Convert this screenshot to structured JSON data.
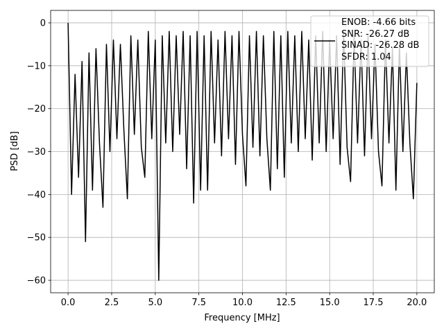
{
  "chart_data": {
    "type": "line",
    "xlabel": "Frequency [MHz]",
    "ylabel": "PSD [dB]",
    "x": [
      0,
      0.2,
      0.4,
      0.6,
      0.8,
      1.0,
      1.2,
      1.4,
      1.6,
      1.8,
      2.0,
      2.2,
      2.4,
      2.6,
      2.8,
      3.0,
      3.2,
      3.4,
      3.6,
      3.8,
      4.0,
      4.2,
      4.4,
      4.6,
      4.8,
      5.0,
      5.2,
      5.4,
      5.6,
      5.8,
      6.0,
      6.2,
      6.4,
      6.6,
      6.8,
      7.0,
      7.2,
      7.4,
      7.6,
      7.8,
      8.0,
      8.2,
      8.4,
      8.6,
      8.8,
      9.0,
      9.2,
      9.4,
      9.6,
      9.8,
      10.0,
      10.2,
      10.4,
      10.6,
      10.8,
      11.0,
      11.2,
      11.4,
      11.6,
      11.8,
      12.0,
      12.2,
      12.4,
      12.6,
      12.8,
      13.0,
      13.2,
      13.4,
      13.6,
      13.8,
      14.0,
      14.2,
      14.4,
      14.6,
      14.8,
      15.0,
      15.2,
      15.4,
      15.6,
      15.8,
      16.0,
      16.2,
      16.4,
      16.6,
      16.8,
      17.0,
      17.2,
      17.4,
      17.6,
      17.8,
      18.0,
      18.2,
      18.4,
      18.6,
      18.8,
      19.0,
      19.2,
      19.4,
      19.6,
      19.8,
      20.0
    ],
    "series": [
      {
        "name": "ENOB: -4.66 bits\nSNR: -26.27 dB\nSINAD: -26.28 dB\nSFDR: 1.04",
        "color": "#000000",
        "values": [
          0,
          -40,
          -12,
          -36,
          -9,
          -51,
          -7,
          -39,
          -6,
          -28,
          -43,
          -5,
          -30,
          -4,
          -27,
          -5,
          -25,
          -41,
          -3,
          -26,
          -4,
          -29,
          -36,
          -2,
          -27,
          -4,
          -60,
          -3,
          -28,
          -2,
          -30,
          -3,
          -26,
          -2,
          -34,
          -3,
          -42,
          -2,
          -39,
          -3,
          -39,
          -2,
          -28,
          -4,
          -31,
          -2,
          -27,
          -3,
          -33,
          -2,
          -26,
          -38,
          -3,
          -29,
          -2,
          -31,
          -3,
          -27,
          -39,
          -2,
          -34,
          -3,
          -36,
          -2,
          -28,
          -3,
          -30,
          -2,
          -27,
          -4,
          -32,
          -3,
          -28,
          -2,
          -30,
          -4,
          -27,
          -3,
          -33,
          -2,
          -29,
          -37,
          -3,
          -28,
          -4,
          -31,
          -3,
          -27,
          -5,
          -30,
          -38,
          -4,
          -28,
          -6,
          -39,
          -5,
          -30,
          -7,
          -28,
          -41,
          -14
        ]
      }
    ],
    "xlim": [
      -1,
      21
    ],
    "ylim": [
      -62.9,
      2.9
    ],
    "xticks": [
      {
        "value": 0,
        "label": "0.0"
      },
      2.5,
      {
        "value": 5,
        "label": "5.0"
      },
      7.5,
      {
        "value": 10,
        "label": "10.0"
      },
      12.5,
      {
        "value": 15,
        "label": "15.0"
      },
      17.5,
      {
        "value": 20,
        "label": "20.0"
      }
    ],
    "yticks": [
      {
        "value": -60,
        "label": "−60"
      },
      {
        "value": -50,
        "label": "−50"
      },
      {
        "value": -40,
        "label": "−40"
      },
      {
        "value": -30,
        "label": "−30"
      },
      {
        "value": -20,
        "label": "−20"
      },
      {
        "value": -10,
        "label": "−10"
      },
      0
    ],
    "grid": true,
    "legend": "upper right"
  }
}
